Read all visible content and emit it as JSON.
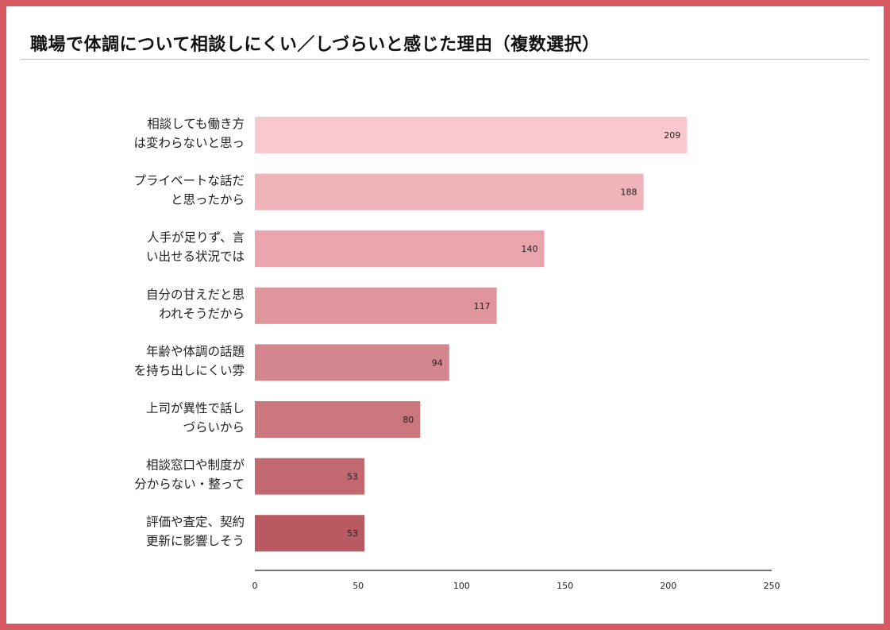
{
  "title": "職場で体調について相談しにくい／しづらいと感じた理由（複数選択）",
  "chart_data": {
    "type": "bar",
    "orientation": "horizontal",
    "title": "職場で体調について相談しにくい／しづらいと感じた理由（複数選択）",
    "categories": [
      [
        "相談しても働き方",
        "は変わらないと思っ"
      ],
      [
        "プライベートな話だ",
        "と思ったから"
      ],
      [
        "人手が足りず、言",
        "い出せる状況では"
      ],
      [
        "自分の甘えだと思",
        "われそうだから"
      ],
      [
        "年齢や体調の話題",
        "を持ち出しにくい雰"
      ],
      [
        "上司が異性で話し",
        "づらいから"
      ],
      [
        "相談窓口や制度が",
        "分からない・整って"
      ],
      [
        "評価や査定、契約",
        "更新に影響しそう"
      ]
    ],
    "values": [
      209,
      188,
      140,
      117,
      94,
      80,
      53,
      53
    ],
    "xlim": [
      0,
      250
    ],
    "xticks": [
      0,
      50,
      100,
      150,
      200,
      250
    ],
    "grid": false,
    "colors": [
      "#f8c8cd",
      "#efb3ba",
      "#e8a5ac",
      "#de959c",
      "#d3868d",
      "#ca777f",
      "#c26870",
      "#b95962"
    ]
  }
}
